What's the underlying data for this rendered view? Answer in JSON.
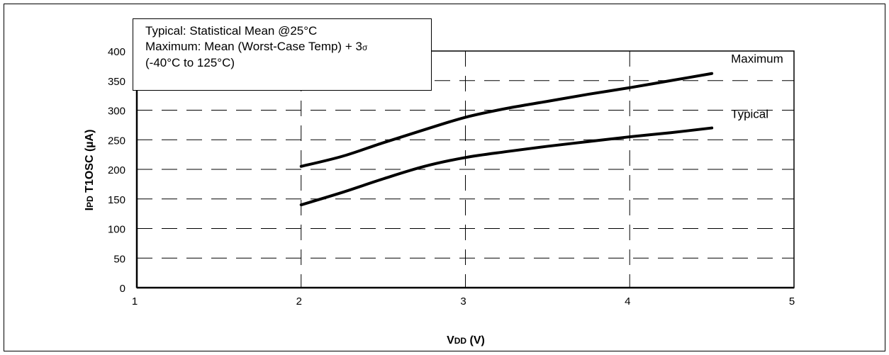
{
  "chart_data": {
    "type": "line",
    "title": "",
    "xlabel": "VDD (V)",
    "xlabel_parts": {
      "main": "V",
      "sub": "DD",
      "unit": " (V)"
    },
    "ylabel": "IPD T1OSC (µA)",
    "ylabel_parts": {
      "main": "I",
      "sub": "PD",
      "rest": " T1OSC (µA)"
    },
    "xlim": [
      1,
      5
    ],
    "ylim": [
      0,
      400
    ],
    "xticks": [
      "1",
      "2",
      "3",
      "4",
      "5"
    ],
    "yticks": [
      "0",
      "50",
      "100",
      "150",
      "200",
      "250",
      "300",
      "350",
      "400"
    ],
    "grid": true,
    "series": [
      {
        "name": "Maximum",
        "x": [
          2.0,
          2.25,
          2.5,
          2.75,
          3.0,
          3.25,
          3.5,
          3.75,
          4.0,
          4.25,
          4.5
        ],
        "values": [
          205,
          222,
          245,
          267,
          288,
          303,
          315,
          327,
          338,
          350,
          362
        ]
      },
      {
        "name": "Typical",
        "x": [
          2.0,
          2.25,
          2.5,
          2.75,
          3.0,
          3.25,
          3.5,
          3.75,
          4.0,
          4.25,
          4.5
        ],
        "values": [
          140,
          161,
          184,
          205,
          220,
          230,
          239,
          247,
          255,
          262,
          270
        ]
      }
    ],
    "annotation_lines": [
      "Typical: Statistical Mean @25°C",
      "Maximum: Mean (Worst-Case Temp) + 3",
      "(-40°C to 125°C)"
    ],
    "annotation_sigma": "σ",
    "legend_placement": "top-left"
  }
}
